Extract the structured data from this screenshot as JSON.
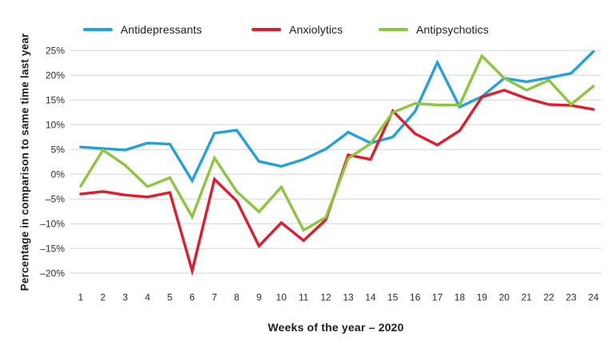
{
  "legend": [
    {
      "id": "antidepressants",
      "label": "Antidepressants",
      "color": "#22a2db"
    },
    {
      "id": "anxiolytics",
      "label": "Anxiolytics",
      "color": "#e01b2c"
    },
    {
      "id": "antipsychotics",
      "label": "Antipsychotics",
      "color": "#8cc63f"
    }
  ],
  "colors": {
    "grid": "#d9d9d9",
    "tick_text": "#2d2d2d",
    "title_text": "#1d1d1b",
    "background": "#ffffff"
  },
  "chart_data": {
    "type": "line",
    "title": "",
    "xlabel": "Weeks of the year – 2020",
    "ylabel": "Percentage in comparison to same time last year",
    "x": [
      1,
      2,
      3,
      4,
      5,
      6,
      7,
      8,
      9,
      10,
      11,
      12,
      13,
      14,
      15,
      16,
      17,
      18,
      19,
      20,
      21,
      22,
      23,
      24
    ],
    "x_tick_labels": [
      "1",
      "2",
      "3",
      "4",
      "5",
      "6",
      "7",
      "8",
      "9",
      "10",
      "11",
      "12",
      "13",
      "14",
      "15",
      "16",
      "17",
      "18",
      "19",
      "20",
      "21",
      "22",
      "23",
      "24"
    ],
    "y_tick_values": [
      25,
      20,
      15,
      10,
      5,
      0,
      -5,
      -10,
      -15,
      -20
    ],
    "y_tick_labels": [
      "25%",
      "20%",
      "15%",
      "10%",
      "5%",
      "0%",
      "–5%",
      "–10%",
      "–15%",
      "–20%"
    ],
    "ylim": [
      -22,
      27
    ],
    "grid": "horizontal",
    "legend_position": "top",
    "units": "percent change vs same time last year",
    "series": [
      {
        "name": "Antidepressants",
        "color": "#22a2db",
        "values": [
          5.5,
          5.2,
          4.9,
          6.3,
          6.1,
          -1.3,
          8.3,
          8.9,
          2.6,
          1.6,
          3.0,
          5.1,
          8.5,
          6.3,
          7.5,
          12.7,
          22.6,
          13.6,
          15.7,
          19.4,
          18.7,
          19.5,
          20.4,
          24.8
        ]
      },
      {
        "name": "Anxiolytics",
        "color": "#e01b2c",
        "values": [
          -4.0,
          -3.5,
          -4.2,
          -4.6,
          -3.7,
          -19.5,
          -1.0,
          -5.4,
          -14.5,
          -9.8,
          -13.4,
          -9.2,
          3.9,
          3.0,
          12.8,
          8.2,
          5.9,
          8.8,
          15.6,
          17.0,
          15.3,
          14.1,
          13.9,
          13.1
        ]
      },
      {
        "name": "Antipsychotics",
        "color": "#8cc63f",
        "values": [
          -2.4,
          4.9,
          1.8,
          -2.5,
          -0.7,
          -8.6,
          3.3,
          -3.5,
          -7.6,
          -2.6,
          -11.3,
          -8.7,
          3.2,
          6.2,
          12.5,
          14.3,
          14.0,
          14.0,
          23.9,
          19.4,
          17.0,
          19.0,
          14.1,
          17.8
        ]
      }
    ]
  }
}
